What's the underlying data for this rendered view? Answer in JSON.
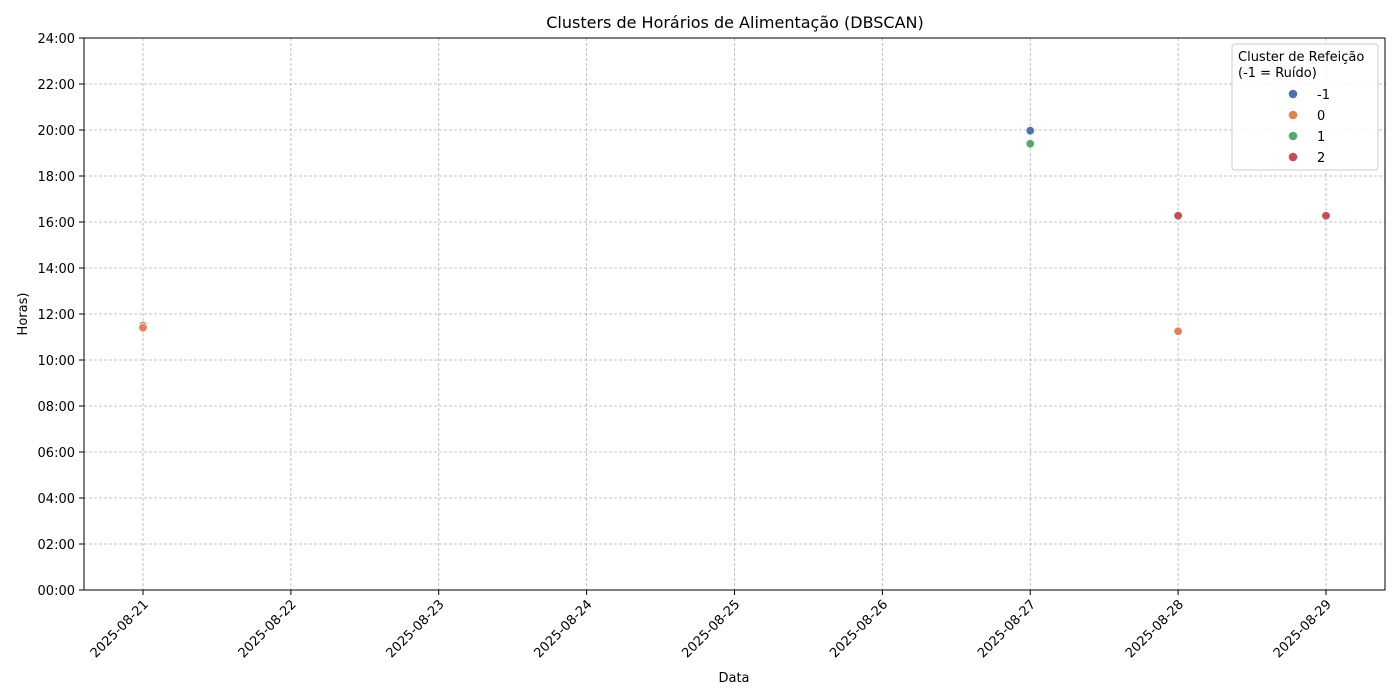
{
  "chart_data": {
    "type": "scatter",
    "title": "Clusters de Horários de Alimentação (DBSCAN)",
    "xlabel": "Data",
    "ylabel": "Horas)",
    "x_ticks": [
      "2025-08-21",
      "2025-08-22",
      "2025-08-23",
      "2025-08-24",
      "2025-08-25",
      "2025-08-26",
      "2025-08-27",
      "2025-08-28",
      "2025-08-29"
    ],
    "y_ticks": [
      "00:00",
      "02:00",
      "04:00",
      "06:00",
      "08:00",
      "10:00",
      "12:00",
      "14:00",
      "16:00",
      "18:00",
      "20:00",
      "22:00",
      "24:00"
    ],
    "ylim_hours": [
      0,
      24
    ],
    "grid": true,
    "legend": {
      "title_line1": "Cluster de Refeição",
      "title_line2": "(-1 = Ruído)",
      "placement": "top-right"
    },
    "series": [
      {
        "name": "-1",
        "color": "#4c72b0",
        "points": [
          {
            "date": "2025-08-27",
            "hours": 19.97
          }
        ]
      },
      {
        "name": "0",
        "color": "#dd8452",
        "points": [
          {
            "date": "2025-08-21",
            "hours": 11.5
          },
          {
            "date": "2025-08-21",
            "hours": 11.4
          },
          {
            "date": "2025-08-28",
            "hours": 11.25
          }
        ]
      },
      {
        "name": "1",
        "color": "#55a868",
        "points": [
          {
            "date": "2025-08-27",
            "hours": 19.4
          }
        ]
      },
      {
        "name": "2",
        "color": "#c44e52",
        "points": [
          {
            "date": "2025-08-28",
            "hours": 16.27
          },
          {
            "date": "2025-08-29",
            "hours": 16.27
          }
        ]
      }
    ]
  }
}
